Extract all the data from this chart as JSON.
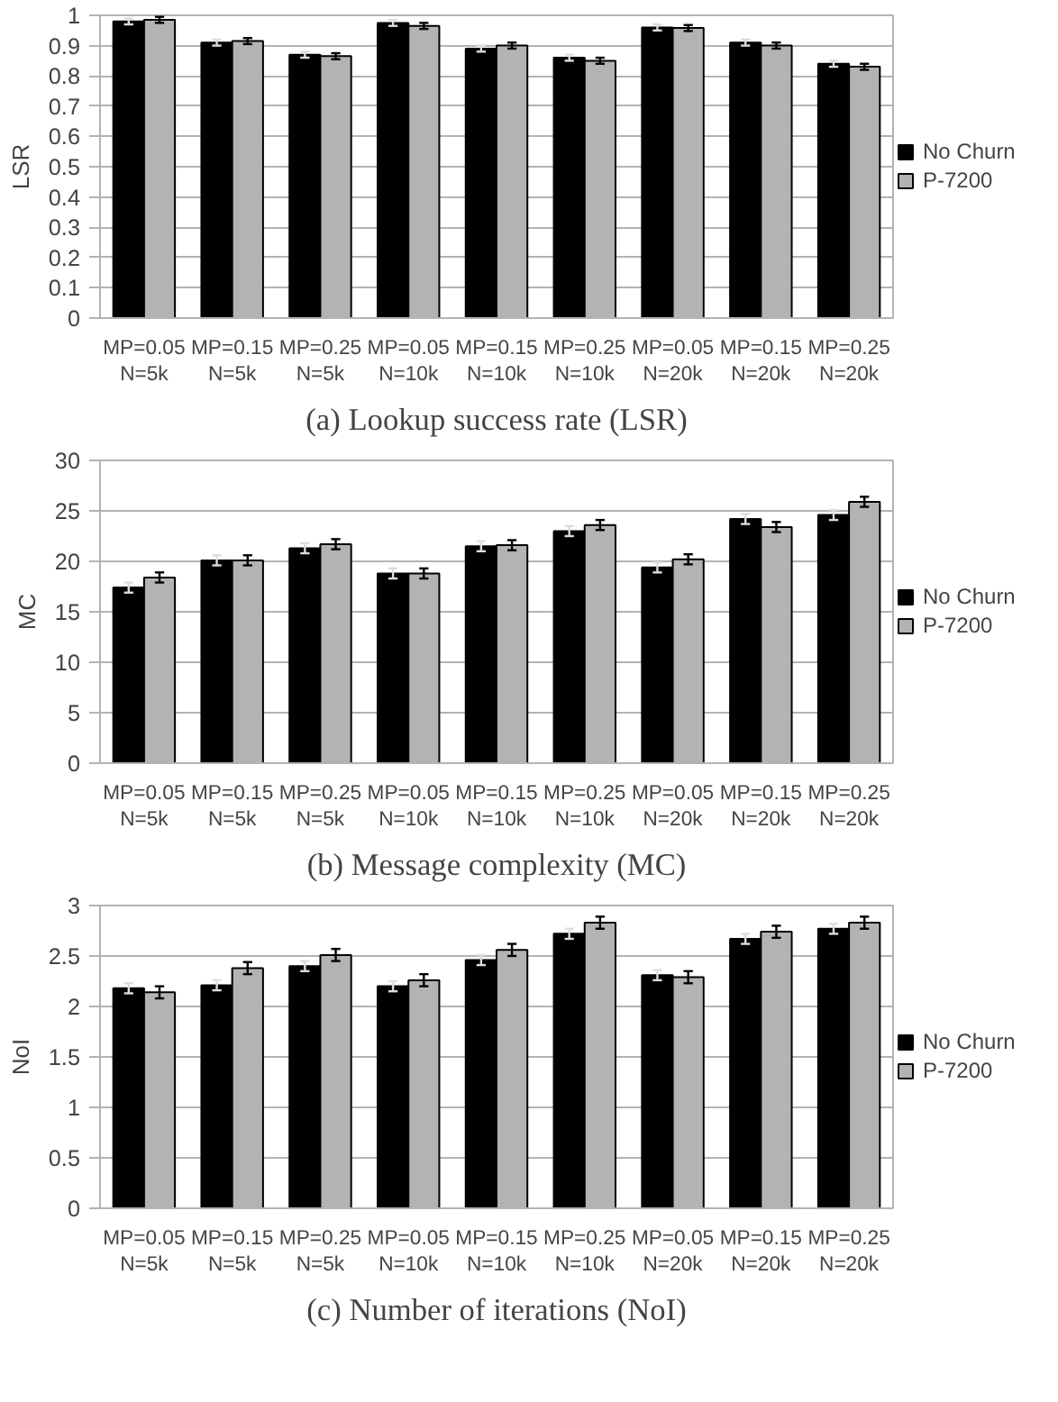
{
  "chart_data": [
    {
      "type": "bar",
      "title": "(a) Lookup success rate (LSR)",
      "ylabel": "LSR",
      "categories": [
        "MP=0.05\nN=5k",
        "MP=0.15\nN=5k",
        "MP=0.25\nN=5k",
        "MP=0.05\nN=10k",
        "MP=0.15\nN=10k",
        "MP=0.25\nN=10k",
        "MP=0.05\nN=20k",
        "MP=0.15\nN=20k",
        "MP=0.25\nN=20k"
      ],
      "series": [
        {
          "name": "No Churn",
          "color": "#000000",
          "values": [
            0.98,
            0.91,
            0.87,
            0.975,
            0.89,
            0.86,
            0.96,
            0.91,
            0.84
          ],
          "errors": [
            0.01,
            0.01,
            0.01,
            0.01,
            0.01,
            0.01,
            0.01,
            0.01,
            0.01
          ]
        },
        {
          "name": "P-7200",
          "color": "#b3b3b3",
          "values": [
            0.985,
            0.915,
            0.865,
            0.965,
            0.9,
            0.85,
            0.958,
            0.9,
            0.83
          ],
          "errors": [
            0.01,
            0.01,
            0.01,
            0.01,
            0.01,
            0.01,
            0.01,
            0.01,
            0.01
          ]
        }
      ],
      "ylim": [
        0,
        1
      ],
      "yticks": [
        0,
        0.1,
        0.2,
        0.3,
        0.4,
        0.5,
        0.6,
        0.7,
        0.8,
        0.9,
        1
      ],
      "grid": "y",
      "legend": "right"
    },
    {
      "type": "bar",
      "title": "(b) Message complexity (MC)",
      "ylabel": "MC",
      "categories": [
        "MP=0.05\nN=5k",
        "MP=0.15\nN=5k",
        "MP=0.25\nN=5k",
        "MP=0.05\nN=10k",
        "MP=0.15\nN=10k",
        "MP=0.25\nN=10k",
        "MP=0.05\nN=20k",
        "MP=0.15\nN=20k",
        "MP=0.25\nN=20k"
      ],
      "series": [
        {
          "name": "No Churn",
          "color": "#000000",
          "values": [
            17.4,
            20.1,
            21.3,
            18.8,
            21.5,
            23.0,
            19.4,
            24.2,
            24.6
          ],
          "errors": [
            0.5,
            0.5,
            0.5,
            0.5,
            0.5,
            0.5,
            0.5,
            0.5,
            0.5
          ]
        },
        {
          "name": "P-7200",
          "color": "#b3b3b3",
          "values": [
            18.4,
            20.1,
            21.7,
            18.8,
            21.6,
            23.6,
            20.2,
            23.4,
            25.9
          ],
          "errors": [
            0.5,
            0.5,
            0.5,
            0.5,
            0.5,
            0.5,
            0.5,
            0.5,
            0.5
          ]
        }
      ],
      "ylim": [
        0,
        30
      ],
      "yticks": [
        0,
        5,
        10,
        15,
        20,
        25,
        30
      ],
      "grid": "y",
      "legend": "right"
    },
    {
      "type": "bar",
      "title": "(c) Number of iterations (NoI)",
      "ylabel": "NoI",
      "categories": [
        "MP=0.05\nN=5k",
        "MP=0.15\nN=5k",
        "MP=0.25\nN=5k",
        "MP=0.05\nN=10k",
        "MP=0.15\nN=10k",
        "MP=0.25\nN=10k",
        "MP=0.05\nN=20k",
        "MP=0.15\nN=20k",
        "MP=0.25\nN=20k"
      ],
      "series": [
        {
          "name": "No Churn",
          "color": "#000000",
          "values": [
            2.18,
            2.21,
            2.4,
            2.2,
            2.46,
            2.72,
            2.31,
            2.67,
            2.77
          ],
          "errors": [
            0.05,
            0.05,
            0.05,
            0.05,
            0.05,
            0.05,
            0.05,
            0.05,
            0.05
          ]
        },
        {
          "name": "P-7200",
          "color": "#b3b3b3",
          "values": [
            2.14,
            2.38,
            2.51,
            2.26,
            2.56,
            2.83,
            2.29,
            2.74,
            2.83
          ],
          "errors": [
            0.06,
            0.06,
            0.06,
            0.06,
            0.06,
            0.06,
            0.06,
            0.06,
            0.06
          ]
        }
      ],
      "ylim": [
        0,
        3
      ],
      "yticks": [
        0,
        0.5,
        1,
        1.5,
        2,
        2.5,
        3
      ],
      "grid": "y",
      "legend": "right"
    }
  ]
}
